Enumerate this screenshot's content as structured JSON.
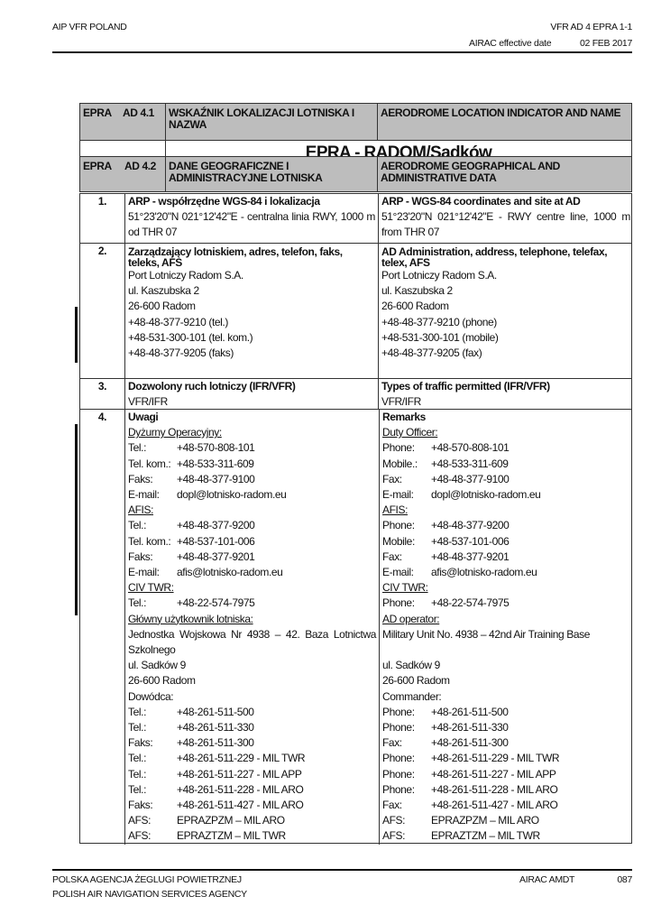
{
  "header": {
    "left": "AIP VFR POLAND",
    "right_top": "VFR AD 4 EPRA 1-1",
    "effective_label": "AIRAC effective date",
    "effective_date": "02 FEB 2017"
  },
  "ad41": {
    "icao": "EPRA",
    "section": "AD 4.1",
    "title_pl": "WSKAŹNIK LOKALIZACJI LOTNISKA I NAZWA",
    "title_en": "AERODROME LOCATION INDICATOR AND NAME",
    "name": "EPRA - RADOM/Sadków"
  },
  "ad42": {
    "icao": "EPRA",
    "section": "AD 4.2",
    "title_pl": "DANE GEOGRAFICZNE I ADMINISTRACYJNE LOTNISKA",
    "title_en": "AERODROME GEOGRAPHICAL AND ADMINISTRATIVE DATA"
  },
  "rows": [
    {
      "num": "1.",
      "title_pl": "ARP - współrzędne WGS-84 i lokalizacja",
      "title_en": "ARP - WGS-84 coordinates and site at AD",
      "text_pl": "51°23'20\"N  021°12'42\"E  -  centralna linia RWY, 1000 m od THR 07",
      "text_en": "51°23'20\"N  021°12'42\"E  -  RWY centre line, 1000 m from THR 07"
    },
    {
      "num": "2.",
      "title_pl": "Zarządzający lotniskiem, adres, telefon, faks, teleks, AFS",
      "title_en": "AD Administration, address, telephone, telefax, telex, AFS",
      "lines_pl": [
        "Port Lotniczy Radom S.A.",
        "ul. Kaszubska 2",
        "26-600 Radom",
        "+48-48-377-9210 (tel.)",
        "+48-531-300-101 (tel. kom.)",
        "+48-48-377-9205 (faks)"
      ],
      "lines_en": [
        "Port Lotniczy Radom S.A.",
        "ul. Kaszubska 2",
        "26-600 Radom",
        "+48-48-377-9210 (phone)",
        "+48-531-300-101 (mobile)",
        "+48-48-377-9205 (fax)"
      ]
    },
    {
      "num": "3.",
      "title_pl": "Dozwolony ruch lotniczy (IFR/VFR)",
      "title_en": "Types of traffic permitted (IFR/VFR)",
      "text_pl": "VFR/IFR",
      "text_en": "VFR/IFR"
    },
    {
      "num": "4.",
      "title_pl": "Uwagi",
      "title_en": "Remarks"
    }
  ],
  "remarks": [
    {
      "s": "u",
      "pl": [
        "Dyżurny Operacyjny:"
      ],
      "en": [
        "Duty Officer:"
      ]
    },
    {
      "s": "kv",
      "pl": [
        "Tel.:",
        "+48-570-808-101"
      ],
      "en": [
        "Phone:",
        "+48-570-808-101"
      ]
    },
    {
      "s": "kv",
      "pl": [
        "Tel. kom.:",
        "+48-533-311-609"
      ],
      "en": [
        "Mobile.:",
        "+48-533-311-609"
      ]
    },
    {
      "s": "kv",
      "pl": [
        "Faks:",
        "+48-48-377-9100"
      ],
      "en": [
        "Fax:",
        "+48-48-377-9100"
      ]
    },
    {
      "s": "kv",
      "pl": [
        "E-mail:",
        "dopl@lotnisko-radom.eu"
      ],
      "en": [
        "E-mail:",
        "dopl@lotnisko-radom.eu"
      ]
    },
    {
      "s": "u",
      "pl": [
        "AFIS:"
      ],
      "en": [
        "AFIS:"
      ]
    },
    {
      "s": "kv",
      "pl": [
        "Tel.:",
        "+48-48-377-9200"
      ],
      "en": [
        "Phone:",
        "+48-48-377-9200"
      ]
    },
    {
      "s": "kv",
      "pl": [
        "Tel. kom.:",
        "+48-537-101-006"
      ],
      "en": [
        "Mobile:",
        "+48-537-101-006"
      ]
    },
    {
      "s": "kv",
      "pl": [
        "Faks:",
        "+48-48-377-9201"
      ],
      "en": [
        "Fax:",
        "+48-48-377-9201"
      ]
    },
    {
      "s": "kv",
      "pl": [
        "E-mail:",
        "afis@lotnisko-radom.eu"
      ],
      "en": [
        "E-mail:",
        "afis@lotnisko-radom.eu"
      ]
    },
    {
      "s": "u",
      "pl": [
        "CIV TWR:"
      ],
      "en": [
        "CIV TWR:"
      ]
    },
    {
      "s": "kv",
      "pl": [
        "Tel.:",
        "+48-22-574-7975"
      ],
      "en": [
        "Phone:",
        "+48-22-574-7975"
      ]
    },
    {
      "s": "u",
      "pl": [
        "Główny użytkownik lotniska:"
      ],
      "en": [
        "AD operator:"
      ]
    },
    {
      "s": "t",
      "pl": [
        "Jednostka Wojskowa Nr 4938 – 42. Baza Lotnictwa Szkolnego"
      ],
      "en": [
        "Military Unit No. 4938 – 42nd Air Training Base"
      ]
    },
    {
      "s": "t",
      "pl": [
        "ul. Sadków 9"
      ],
      "en": [
        "ul. Sadków 9"
      ]
    },
    {
      "s": "t",
      "pl": [
        "26-600 Radom"
      ],
      "en": [
        "26-600 Radom"
      ]
    },
    {
      "s": "t",
      "pl": [
        "Dowódca:"
      ],
      "en": [
        "Commander:"
      ]
    },
    {
      "s": "kv",
      "pl": [
        "Tel.:",
        "+48-261-511-500"
      ],
      "en": [
        "Phone:",
        "+48-261-511-500"
      ]
    },
    {
      "s": "kv",
      "pl": [
        "Tel.:",
        "+48-261-511-330"
      ],
      "en": [
        "Phone:",
        "+48-261-511-330"
      ]
    },
    {
      "s": "kv",
      "pl": [
        "Faks:",
        "+48-261-511-300"
      ],
      "en": [
        "Fax:",
        "+48-261-511-300"
      ]
    },
    {
      "s": "kv",
      "pl": [
        "Tel.:",
        "+48-261-511-229 - MIL TWR"
      ],
      "en": [
        "Phone:",
        "+48-261-511-229 - MIL TWR"
      ]
    },
    {
      "s": "kv",
      "pl": [
        "Tel.:",
        "+48-261-511-227 - MIL APP"
      ],
      "en": [
        "Phone:",
        "+48-261-511-227 - MIL APP"
      ]
    },
    {
      "s": "kv",
      "pl": [
        "Tel.:",
        "+48-261-511-228 - MIL ARO"
      ],
      "en": [
        "Phone:",
        "+48-261-511-228 - MIL ARO"
      ]
    },
    {
      "s": "kv",
      "pl": [
        "Faks:",
        "+48-261-511-427 - MIL ARO"
      ],
      "en": [
        "Fax:",
        "+48-261-511-427 - MIL ARO"
      ]
    },
    {
      "s": "kv",
      "pl": [
        "AFS:",
        " EPRAZPZM – MIL ARO"
      ],
      "en": [
        "AFS:",
        " EPRAZPZM – MIL ARO"
      ]
    },
    {
      "s": "kv",
      "pl": [
        "AFS:",
        " EPRAZTZM – MIL TWR"
      ],
      "en": [
        "AFS:",
        " EPRAZTZM – MIL TWR"
      ]
    }
  ],
  "footer": {
    "agency_pl": "POLSKA AGENCJA ŻEGLUGI POWIETRZNEJ",
    "agency_en": "POLISH AIR NAVIGATION SERVICES AGENCY",
    "amdt_label": "AIRAC AMDT",
    "amdt_number": "087"
  }
}
